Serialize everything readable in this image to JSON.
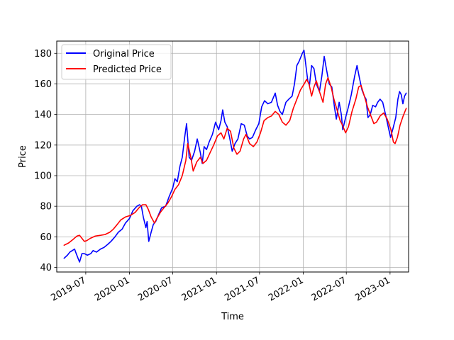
{
  "chart_data": {
    "type": "line",
    "title": "",
    "xlabel": "Time",
    "ylabel": "Price",
    "grid": true,
    "legend_position": "top-left",
    "xlim": [
      "2019-03-01",
      "2023-03-20"
    ],
    "ylim": [
      37,
      188
    ],
    "x_ticks": [
      "2019-07-01",
      "2020-01-01",
      "2020-07-01",
      "2021-01-01",
      "2021-07-01",
      "2022-01-01",
      "2022-07-01",
      "2023-01-01"
    ],
    "x_tick_labels": [
      "2019-07",
      "2020-01",
      "2020-07",
      "2021-01",
      "2021-07",
      "2022-01",
      "2022-07",
      "2023-01"
    ],
    "y_ticks": [
      40,
      60,
      80,
      100,
      120,
      140,
      160,
      180
    ],
    "y_tick_labels": [
      "40",
      "60",
      "80",
      "100",
      "120",
      "140",
      "160",
      "180"
    ],
    "series": [
      {
        "name": "Original Price",
        "color": "#0000ff",
        "points": [
          [
            "2019-04-01",
            46
          ],
          [
            "2019-04-15",
            48
          ],
          [
            "2019-04-25",
            50
          ],
          [
            "2019-05-05",
            51
          ],
          [
            "2019-05-15",
            52
          ],
          [
            "2019-05-22",
            49
          ],
          [
            "2019-06-01",
            45
          ],
          [
            "2019-06-05",
            43.5
          ],
          [
            "2019-06-15",
            49
          ],
          [
            "2019-06-25",
            49
          ],
          [
            "2019-07-08",
            48
          ],
          [
            "2019-07-22",
            49
          ],
          [
            "2019-08-01",
            51
          ],
          [
            "2019-08-15",
            50
          ],
          [
            "2019-09-01",
            52
          ],
          [
            "2019-09-15",
            53
          ],
          [
            "2019-10-01",
            55
          ],
          [
            "2019-10-15",
            57
          ],
          [
            "2019-11-01",
            60
          ],
          [
            "2019-11-15",
            63
          ],
          [
            "2019-12-01",
            65
          ],
          [
            "2019-12-15",
            69
          ],
          [
            "2020-01-01",
            72
          ],
          [
            "2020-01-15",
            77
          ],
          [
            "2020-02-01",
            80
          ],
          [
            "2020-02-12",
            81
          ],
          [
            "2020-02-20",
            80
          ],
          [
            "2020-02-28",
            73
          ],
          [
            "2020-03-10",
            66
          ],
          [
            "2020-03-15",
            70
          ],
          [
            "2020-03-22",
            57
          ],
          [
            "2020-04-01",
            63
          ],
          [
            "2020-04-10",
            68
          ],
          [
            "2020-04-20",
            70
          ],
          [
            "2020-05-01",
            74
          ],
          [
            "2020-05-15",
            79
          ],
          [
            "2020-06-01",
            80
          ],
          [
            "2020-06-15",
            86
          ],
          [
            "2020-07-01",
            92
          ],
          [
            "2020-07-10",
            98
          ],
          [
            "2020-07-20",
            96
          ],
          [
            "2020-07-31",
            106
          ],
          [
            "2020-08-10",
            112
          ],
          [
            "2020-08-20",
            125
          ],
          [
            "2020-08-28",
            134
          ],
          [
            "2020-09-03",
            122
          ],
          [
            "2020-09-08",
            112
          ],
          [
            "2020-09-18",
            110
          ],
          [
            "2020-10-01",
            116
          ],
          [
            "2020-10-12",
            124
          ],
          [
            "2020-10-25",
            115
          ],
          [
            "2020-11-02",
            108
          ],
          [
            "2020-11-10",
            119
          ],
          [
            "2020-11-20",
            117
          ],
          [
            "2020-12-01",
            122
          ],
          [
            "2020-12-15",
            127
          ],
          [
            "2020-12-28",
            135
          ],
          [
            "2021-01-10",
            130
          ],
          [
            "2021-01-20",
            136
          ],
          [
            "2021-01-27",
            143
          ],
          [
            "2021-02-05",
            135
          ],
          [
            "2021-02-15",
            132
          ],
          [
            "2021-02-25",
            125
          ],
          [
            "2021-03-08",
            116
          ],
          [
            "2021-03-20",
            121
          ],
          [
            "2021-04-01",
            124
          ],
          [
            "2021-04-15",
            134
          ],
          [
            "2021-04-28",
            133
          ],
          [
            "2021-05-10",
            126
          ],
          [
            "2021-05-20",
            124
          ],
          [
            "2021-06-01",
            125
          ],
          [
            "2021-06-15",
            130
          ],
          [
            "2021-06-28",
            134
          ],
          [
            "2021-07-10",
            145
          ],
          [
            "2021-07-22",
            149
          ],
          [
            "2021-08-05",
            147
          ],
          [
            "2021-08-20",
            148
          ],
          [
            "2021-09-05",
            154
          ],
          [
            "2021-09-15",
            146
          ],
          [
            "2021-09-25",
            142
          ],
          [
            "2021-10-05",
            140
          ],
          [
            "2021-10-20",
            148
          ],
          [
            "2021-11-01",
            150
          ],
          [
            "2021-11-15",
            152
          ],
          [
            "2021-11-25",
            160
          ],
          [
            "2021-12-05",
            172
          ],
          [
            "2021-12-15",
            175
          ],
          [
            "2021-12-28",
            180
          ],
          [
            "2022-01-04",
            182
          ],
          [
            "2022-01-12",
            172
          ],
          [
            "2022-01-20",
            162
          ],
          [
            "2022-01-27",
            159
          ],
          [
            "2022-02-05",
            172
          ],
          [
            "2022-02-15",
            170
          ],
          [
            "2022-02-25",
            160
          ],
          [
            "2022-03-10",
            155
          ],
          [
            "2022-03-20",
            165
          ],
          [
            "2022-03-30",
            178
          ],
          [
            "2022-04-08",
            170
          ],
          [
            "2022-04-20",
            160
          ],
          [
            "2022-05-01",
            158
          ],
          [
            "2022-05-12",
            145
          ],
          [
            "2022-05-20",
            137
          ],
          [
            "2022-06-01",
            148
          ],
          [
            "2022-06-10",
            140
          ],
          [
            "2022-06-16",
            130
          ],
          [
            "2022-06-28",
            138
          ],
          [
            "2022-07-10",
            145
          ],
          [
            "2022-07-22",
            153
          ],
          [
            "2022-08-05",
            165
          ],
          [
            "2022-08-15",
            172
          ],
          [
            "2022-08-25",
            164
          ],
          [
            "2022-09-05",
            156
          ],
          [
            "2022-09-15",
            152
          ],
          [
            "2022-09-22",
            150
          ],
          [
            "2022-09-30",
            138
          ],
          [
            "2022-10-10",
            140
          ],
          [
            "2022-10-20",
            146
          ],
          [
            "2022-11-01",
            145
          ],
          [
            "2022-11-10",
            148
          ],
          [
            "2022-11-20",
            150
          ],
          [
            "2022-12-01",
            148
          ],
          [
            "2022-12-10",
            142
          ],
          [
            "2022-12-20",
            135
          ],
          [
            "2023-01-03",
            125
          ],
          [
            "2023-01-12",
            130
          ],
          [
            "2023-01-25",
            138
          ],
          [
            "2023-02-03",
            150
          ],
          [
            "2023-02-10",
            155
          ],
          [
            "2023-02-17",
            153
          ],
          [
            "2023-02-24",
            147
          ],
          [
            "2023-03-03",
            152
          ],
          [
            "2023-03-10",
            154
          ]
        ]
      },
      {
        "name": "Predicted Price",
        "color": "#ff0000",
        "points": [
          [
            "2019-04-01",
            54.5
          ],
          [
            "2019-04-20",
            56
          ],
          [
            "2019-05-10",
            58.5
          ],
          [
            "2019-05-25",
            60.5
          ],
          [
            "2019-06-05",
            61
          ],
          [
            "2019-06-15",
            59
          ],
          [
            "2019-06-25",
            57
          ],
          [
            "2019-07-05",
            57.5
          ],
          [
            "2019-07-20",
            59
          ],
          [
            "2019-08-10",
            60.5
          ],
          [
            "2019-09-01",
            61
          ],
          [
            "2019-09-20",
            61.5
          ],
          [
            "2019-10-10",
            63
          ],
          [
            "2019-10-25",
            65
          ],
          [
            "2019-11-10",
            68
          ],
          [
            "2019-11-25",
            71
          ],
          [
            "2019-12-15",
            73
          ],
          [
            "2020-01-05",
            74
          ],
          [
            "2020-01-25",
            76
          ],
          [
            "2020-02-10",
            79
          ],
          [
            "2020-02-25",
            81
          ],
          [
            "2020-03-10",
            81
          ],
          [
            "2020-03-20",
            78
          ],
          [
            "2020-04-01",
            73
          ],
          [
            "2020-04-15",
            69
          ],
          [
            "2020-04-25",
            72
          ],
          [
            "2020-05-10",
            76
          ],
          [
            "2020-05-25",
            79
          ],
          [
            "2020-06-10",
            82
          ],
          [
            "2020-06-25",
            86
          ],
          [
            "2020-07-10",
            91
          ],
          [
            "2020-07-25",
            94
          ],
          [
            "2020-08-10",
            100
          ],
          [
            "2020-08-25",
            110
          ],
          [
            "2020-09-02",
            121
          ],
          [
            "2020-09-15",
            112
          ],
          [
            "2020-09-25",
            103
          ],
          [
            "2020-10-10",
            109
          ],
          [
            "2020-10-25",
            112
          ],
          [
            "2020-11-05",
            108
          ],
          [
            "2020-11-20",
            110
          ],
          [
            "2020-12-05",
            115
          ],
          [
            "2020-12-20",
            120
          ],
          [
            "2021-01-05",
            126
          ],
          [
            "2021-01-20",
            128
          ],
          [
            "2021-02-01",
            124
          ],
          [
            "2021-02-15",
            131
          ],
          [
            "2021-03-01",
            129
          ],
          [
            "2021-03-15",
            118
          ],
          [
            "2021-03-28",
            114
          ],
          [
            "2021-04-10",
            116
          ],
          [
            "2021-04-25",
            124
          ],
          [
            "2021-05-05",
            127
          ],
          [
            "2021-05-20",
            121
          ],
          [
            "2021-06-05",
            119
          ],
          [
            "2021-06-20",
            122
          ],
          [
            "2021-07-05",
            128
          ],
          [
            "2021-07-20",
            136
          ],
          [
            "2021-08-05",
            138
          ],
          [
            "2021-08-20",
            139
          ],
          [
            "2021-09-05",
            142
          ],
          [
            "2021-09-20",
            140
          ],
          [
            "2021-10-05",
            135
          ],
          [
            "2021-10-20",
            133
          ],
          [
            "2021-11-05",
            136
          ],
          [
            "2021-11-20",
            144
          ],
          [
            "2021-12-05",
            150
          ],
          [
            "2021-12-20",
            156
          ],
          [
            "2022-01-05",
            160
          ],
          [
            "2022-01-15",
            163
          ],
          [
            "2022-01-25",
            160
          ],
          [
            "2022-02-05",
            152
          ],
          [
            "2022-02-15",
            158
          ],
          [
            "2022-02-25",
            162
          ],
          [
            "2022-03-10",
            155
          ],
          [
            "2022-03-25",
            148
          ],
          [
            "2022-04-05",
            160
          ],
          [
            "2022-04-15",
            164
          ],
          [
            "2022-04-28",
            158
          ],
          [
            "2022-05-10",
            150
          ],
          [
            "2022-05-25",
            142
          ],
          [
            "2022-06-05",
            136
          ],
          [
            "2022-06-15",
            133
          ],
          [
            "2022-06-28",
            128
          ],
          [
            "2022-07-10",
            132
          ],
          [
            "2022-07-25",
            142
          ],
          [
            "2022-08-10",
            150
          ],
          [
            "2022-08-22",
            158
          ],
          [
            "2022-09-01",
            159
          ],
          [
            "2022-09-15",
            152
          ],
          [
            "2022-09-28",
            145
          ],
          [
            "2022-10-10",
            140
          ],
          [
            "2022-10-25",
            134
          ],
          [
            "2022-11-05",
            135
          ],
          [
            "2022-11-20",
            139
          ],
          [
            "2022-12-05",
            141
          ],
          [
            "2022-12-20",
            137
          ],
          [
            "2023-01-05",
            130
          ],
          [
            "2023-01-15",
            122
          ],
          [
            "2023-01-22",
            121
          ],
          [
            "2023-02-01",
            125
          ],
          [
            "2023-02-12",
            133
          ],
          [
            "2023-02-25",
            139
          ],
          [
            "2023-03-10",
            144
          ]
        ]
      }
    ]
  }
}
